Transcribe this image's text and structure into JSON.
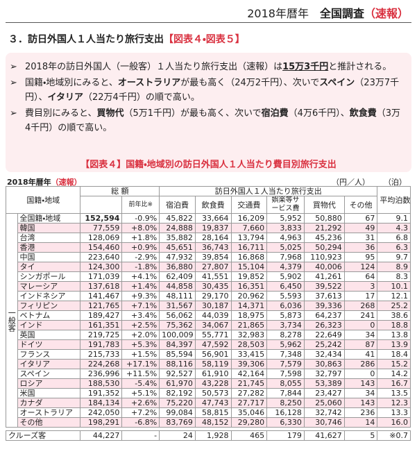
{
  "header": {
    "period": "2018年暦年",
    "survey": "全国調査",
    "note": "（速報）"
  },
  "section": {
    "title": "３．訪日外国人１人当たり旅行支出",
    "ref": "【図表４・図表５】"
  },
  "bullets": [
    [
      "2018年の訪日外国人（一般客）１人当たり旅行支出（速報）は",
      "15万3千円",
      "と推計される。"
    ],
    [
      "国籍・地域別にみると、",
      "オーストラリア",
      "が最も高く（24万2千円）、次いで",
      "スペイン",
      "（23万7千円）、",
      "イタリア",
      "（22万4千円）の順で高い。"
    ],
    [
      "費目別にみると、",
      "買物代",
      "（5万1千円）が最も高く、次いで",
      "宿泊費",
      "（4万6千円）、",
      "飲食費",
      "（3万4千円）の順で高い。"
    ]
  ],
  "table": {
    "title": "【図表４】国籍・地域別の訪日外国人１人当たり費目別旅行支出",
    "period": "2018年暦年",
    "period_note": "（速報）",
    "unit_yen": "（円／人）",
    "unit_nights": "（泊）",
    "header": {
      "region": "国籍・地域",
      "total": "総 額",
      "yoy": "前年比※",
      "group": "訪日外国人１人当たり旅行支出",
      "cols": [
        "宿泊費",
        "飲食費",
        "交通費",
        "娯楽等サービス費",
        "買物代",
        "その他"
      ],
      "nights": "平均泊数"
    },
    "side_label": "一般客",
    "rows": [
      [
        "全国籍・地域",
        "152,594",
        "-0.9%",
        "45,822",
        "33,664",
        "16,209",
        "5,952",
        "50,880",
        "67",
        "9.1"
      ],
      [
        "韓国",
        "77,559",
        "+8.0%",
        "24,888",
        "19,837",
        "7,660",
        "3,833",
        "21,292",
        "49",
        "4.3"
      ],
      [
        "台湾",
        "128,069",
        "+1.8%",
        "35,882",
        "28,164",
        "13,794",
        "4,963",
        "45,236",
        "31",
        "6.8"
      ],
      [
        "香港",
        "154,460",
        "+0.9%",
        "45,651",
        "36,743",
        "16,711",
        "5,025",
        "50,294",
        "36",
        "6.3"
      ],
      [
        "中国",
        "223,640",
        "-2.9%",
        "47,932",
        "39,854",
        "16,868",
        "7,968",
        "110,923",
        "95",
        "9.7"
      ],
      [
        "タイ",
        "124,300",
        "-1.8%",
        "36,880",
        "27,807",
        "15,104",
        "4,379",
        "40,006",
        "124",
        "8.9"
      ],
      [
        "シンガポール",
        "171,039",
        "+4.1%",
        "62,409",
        "41,551",
        "19,852",
        "5,902",
        "41,261",
        "64",
        "8.3"
      ],
      [
        "マレーシア",
        "137,618",
        "+1.4%",
        "44,858",
        "30,435",
        "16,351",
        "6,450",
        "39,522",
        "3",
        "10.1"
      ],
      [
        "インドネシア",
        "141,467",
        "+9.3%",
        "48,111",
        "29,170",
        "20,962",
        "5,593",
        "37,613",
        "17",
        "12.1"
      ],
      [
        "フィリピン",
        "121,765",
        "+7.1%",
        "31,567",
        "30,187",
        "14,371",
        "6,036",
        "39,336",
        "268",
        "25.2"
      ],
      [
        "ベトナム",
        "189,427",
        "+3.4%",
        "56,062",
        "44,039",
        "18,975",
        "5,873",
        "64,237",
        "241",
        "38.6"
      ],
      [
        "インド",
        "161,351",
        "+2.5%",
        "75,362",
        "34,067",
        "21,865",
        "3,734",
        "26,323",
        "0",
        "18.8"
      ],
      [
        "英国",
        "219,725",
        "+2.0%",
        "100,009",
        "55,771",
        "32,983",
        "8,278",
        "22,649",
        "34",
        "13.8"
      ],
      [
        "ドイツ",
        "191,783",
        "+5.3%",
        "84,397",
        "47,592",
        "28,503",
        "5,962",
        "25,242",
        "87",
        "13.9"
      ],
      [
        "フランス",
        "215,733",
        "+1.5%",
        "85,594",
        "56,901",
        "33,415",
        "7,348",
        "32,434",
        "41",
        "18.4"
      ],
      [
        "イタリア",
        "224,268",
        "+17.1%",
        "88,116",
        "58,119",
        "39,306",
        "7,579",
        "30,863",
        "286",
        "15.2"
      ],
      [
        "スペイン",
        "236,996",
        "+11.5%",
        "92,527",
        "61,910",
        "42,164",
        "7,598",
        "32,797",
        "0",
        "14.2"
      ],
      [
        "ロシア",
        "188,530",
        "-5.4%",
        "61,970",
        "43,228",
        "21,745",
        "8,055",
        "53,389",
        "143",
        "16.7"
      ],
      [
        "米国",
        "191,352",
        "+5.1%",
        "82,192",
        "50,573",
        "27,282",
        "7,844",
        "23,427",
        "34",
        "13.5"
      ],
      [
        "カナダ",
        "184,134",
        "+2.6%",
        "75,220",
        "47,743",
        "27,717",
        "8,250",
        "25,060",
        "143",
        "12.3"
      ],
      [
        "オーストラリア",
        "242,050",
        "+7.2%",
        "99,084",
        "58,815",
        "35,046",
        "16,128",
        "32,742",
        "236",
        "13.3"
      ],
      [
        "その他",
        "198,291",
        "-6.8%",
        "83,769",
        "48,152",
        "29,280",
        "6,330",
        "30,746",
        "14",
        "16.0"
      ]
    ],
    "cruise_row": [
      "クルーズ客",
      "44,227",
      "-",
      "24",
      "1,928",
      "465",
      "179",
      "41,627",
      "5",
      "※0.7"
    ]
  }
}
